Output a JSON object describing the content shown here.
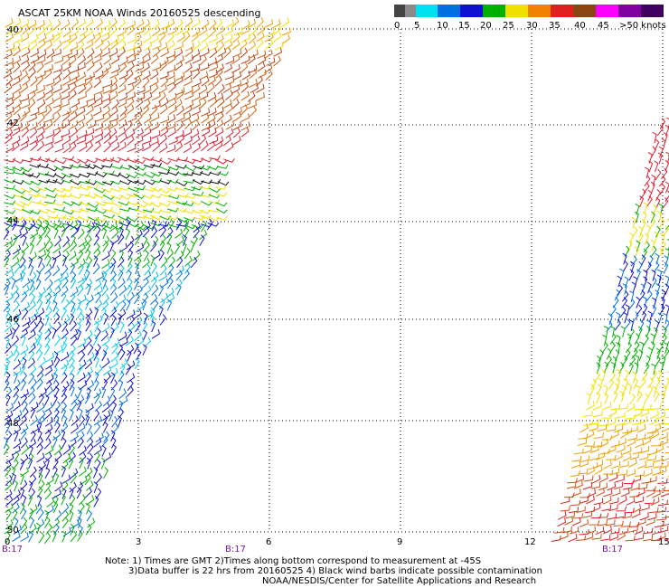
{
  "title": "ASCAT 25KM NOAA Winds 20160525 descending",
  "legend": {
    "labels": [
      "0",
      "5",
      "10",
      "15",
      "20",
      "25",
      "30",
      "35",
      "40",
      "45"
    ],
    "unit": ">50 knots",
    "colors": [
      "#444444",
      "#8a8a8a",
      "#00e0f0",
      "#0070e0",
      "#1010d0",
      "#00b000",
      "#f0e000",
      "#f08000",
      "#e02020",
      "#8b4513",
      "#ff00ff",
      "#8000a0",
      "#400060"
    ]
  },
  "map": {
    "lat_labels": [
      "40",
      "42",
      "44",
      "46",
      "48",
      "50"
    ],
    "lon_labels": [
      "0",
      "3",
      "6",
      "9",
      "12",
      "15"
    ],
    "pass_labels": [
      "B:17",
      "B:17",
      "B:17"
    ]
  },
  "notes": {
    "line1": "Note: 1) Times are GMT 2)Times along bottom correspond to measurement at -45S",
    "line2": "3)Data buffer is 22 hrs from 20160525 4) Black wind barbs indicate possible contamination"
  },
  "credit": "NOAA/NESDIS/Center for Satellite Applications and Research"
}
